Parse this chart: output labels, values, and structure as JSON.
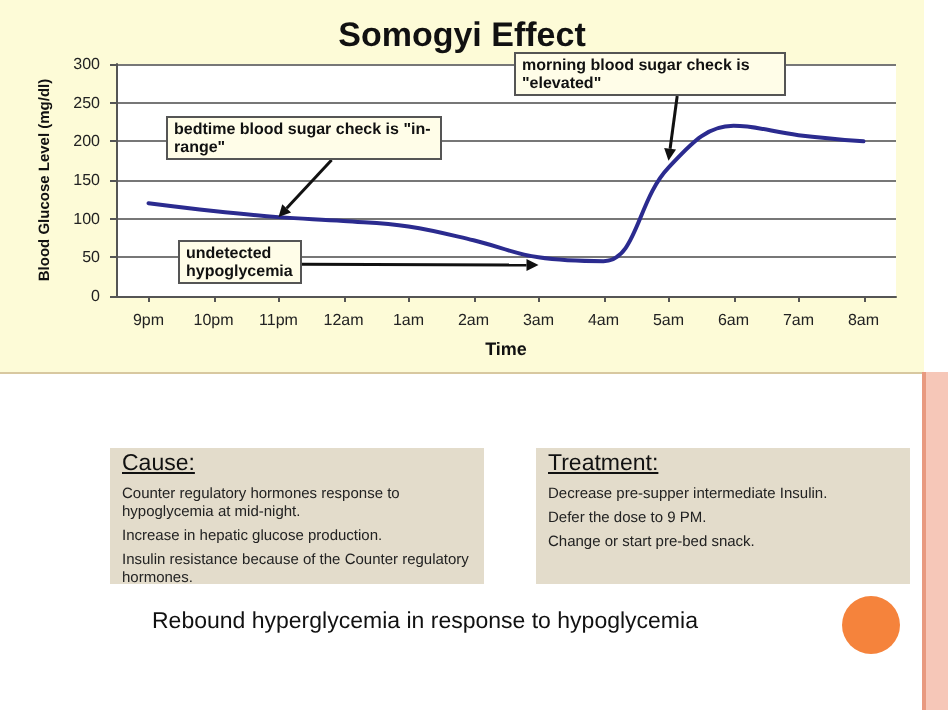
{
  "chart_data": {
    "type": "line",
    "title": "Somogyi Effect",
    "xlabel": "Time",
    "ylabel": "Blood Glucose Level (mg/dl)",
    "categories": [
      "9pm",
      "10pm",
      "11pm",
      "12am",
      "1am",
      "2am",
      "3am",
      "4am",
      "5am",
      "6am",
      "7am",
      "8am"
    ],
    "series": [
      {
        "color": "#2b2b8f",
        "values": [
          120,
          110,
          102,
          97,
          90,
          72,
          50,
          45,
          166,
          220,
          208,
          200
        ]
      }
    ],
    "ylim": [
      0,
      300
    ],
    "yticks": [
      0,
      50,
      100,
      150,
      200,
      250,
      300
    ],
    "grid": "y",
    "marker": "none",
    "line_style": "solid",
    "annotations": [
      {
        "text": "bedtime blood sugar check is \"in-range\"",
        "x": "11pm",
        "y": 102
      },
      {
        "text": "undetected hypoglycemia",
        "x": "3am",
        "y": 40
      },
      {
        "text": "morning blood sugar check is \"elevated\"",
        "x": "5am",
        "y": 175
      },
      "Cause:",
      "Counter regulatory hormones response to hypoglycemia at mid-night.",
      "Increase in hepatic glucose production.",
      "Insulin resistance because of the Counter regulatory hormones.",
      "Treatment:",
      "Decrease pre-supper intermediate Insulin.",
      "Defer the dose to 9 PM.",
      "Change or start pre-bed snack.",
      "Rebound hyperglycemia in response to hypoglycemia"
    ]
  }
}
